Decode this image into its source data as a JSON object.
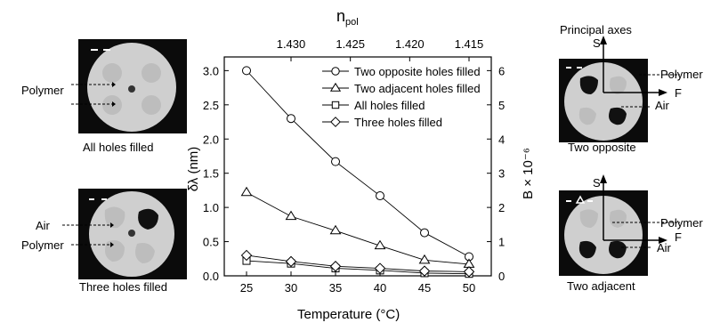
{
  "chart_data": {
    "type": "line",
    "title": "",
    "xlabel": "Temperature (°C)",
    "ylabel_left": "δλ (nm)",
    "ylabel_right": "B × 10⁻⁶",
    "top_axis_label": "npol",
    "top_axis_label_main": "n",
    "top_axis_label_sub": "pol",
    "x": [
      25,
      30,
      35,
      40,
      45,
      50
    ],
    "xlim": [
      22.5,
      52.5
    ],
    "ylim": [
      0,
      3.2
    ],
    "ylim_right": [
      0,
      6.4
    ],
    "x_ticks": [
      "25",
      "30",
      "35",
      "40",
      "45",
      "50"
    ],
    "y_ticks": [
      "0.0",
      "0.5",
      "1.0",
      "1.5",
      "2.0",
      "2.5",
      "3.0"
    ],
    "y_right_ticks": [
      "0",
      "1",
      "2",
      "3",
      "4",
      "5",
      "6"
    ],
    "top_ticks": [
      "1.430",
      "1.425",
      "1.420",
      "1.415"
    ],
    "legend_position": "top-right",
    "series": [
      {
        "name": "Two opposite holes filled",
        "marker": "circle",
        "values": [
          3.0,
          2.3,
          1.67,
          1.17,
          0.63,
          0.28
        ]
      },
      {
        "name": "Two adjacent holes filled",
        "marker": "triangle",
        "values": [
          1.22,
          0.87,
          0.66,
          0.44,
          0.23,
          0.17
        ]
      },
      {
        "name": "All holes filled",
        "marker": "square",
        "values": [
          0.22,
          0.18,
          0.11,
          0.08,
          0.04,
          0.03
        ]
      },
      {
        "name": "Three holes filled",
        "marker": "diamond",
        "values": [
          0.3,
          0.21,
          0.14,
          0.11,
          0.07,
          0.06
        ]
      }
    ]
  },
  "insets": {
    "all_holes": {
      "caption": "All holes filled",
      "label_polymer": "Polymer"
    },
    "three_holes": {
      "caption": "Three holes filled",
      "label_air": "Air",
      "label_polymer": "Polymer"
    },
    "two_opposite": {
      "caption": "Two opposite",
      "axes_title": "Principal axes",
      "axis_s": "S",
      "axis_f": "F",
      "label_polymer": "Polymer",
      "label_air": "Air"
    },
    "two_adjacent": {
      "caption": "Two adjacent",
      "axis_s": "S",
      "axis_f": "F",
      "label_polymer": "Polymer",
      "label_air": "Air"
    }
  }
}
